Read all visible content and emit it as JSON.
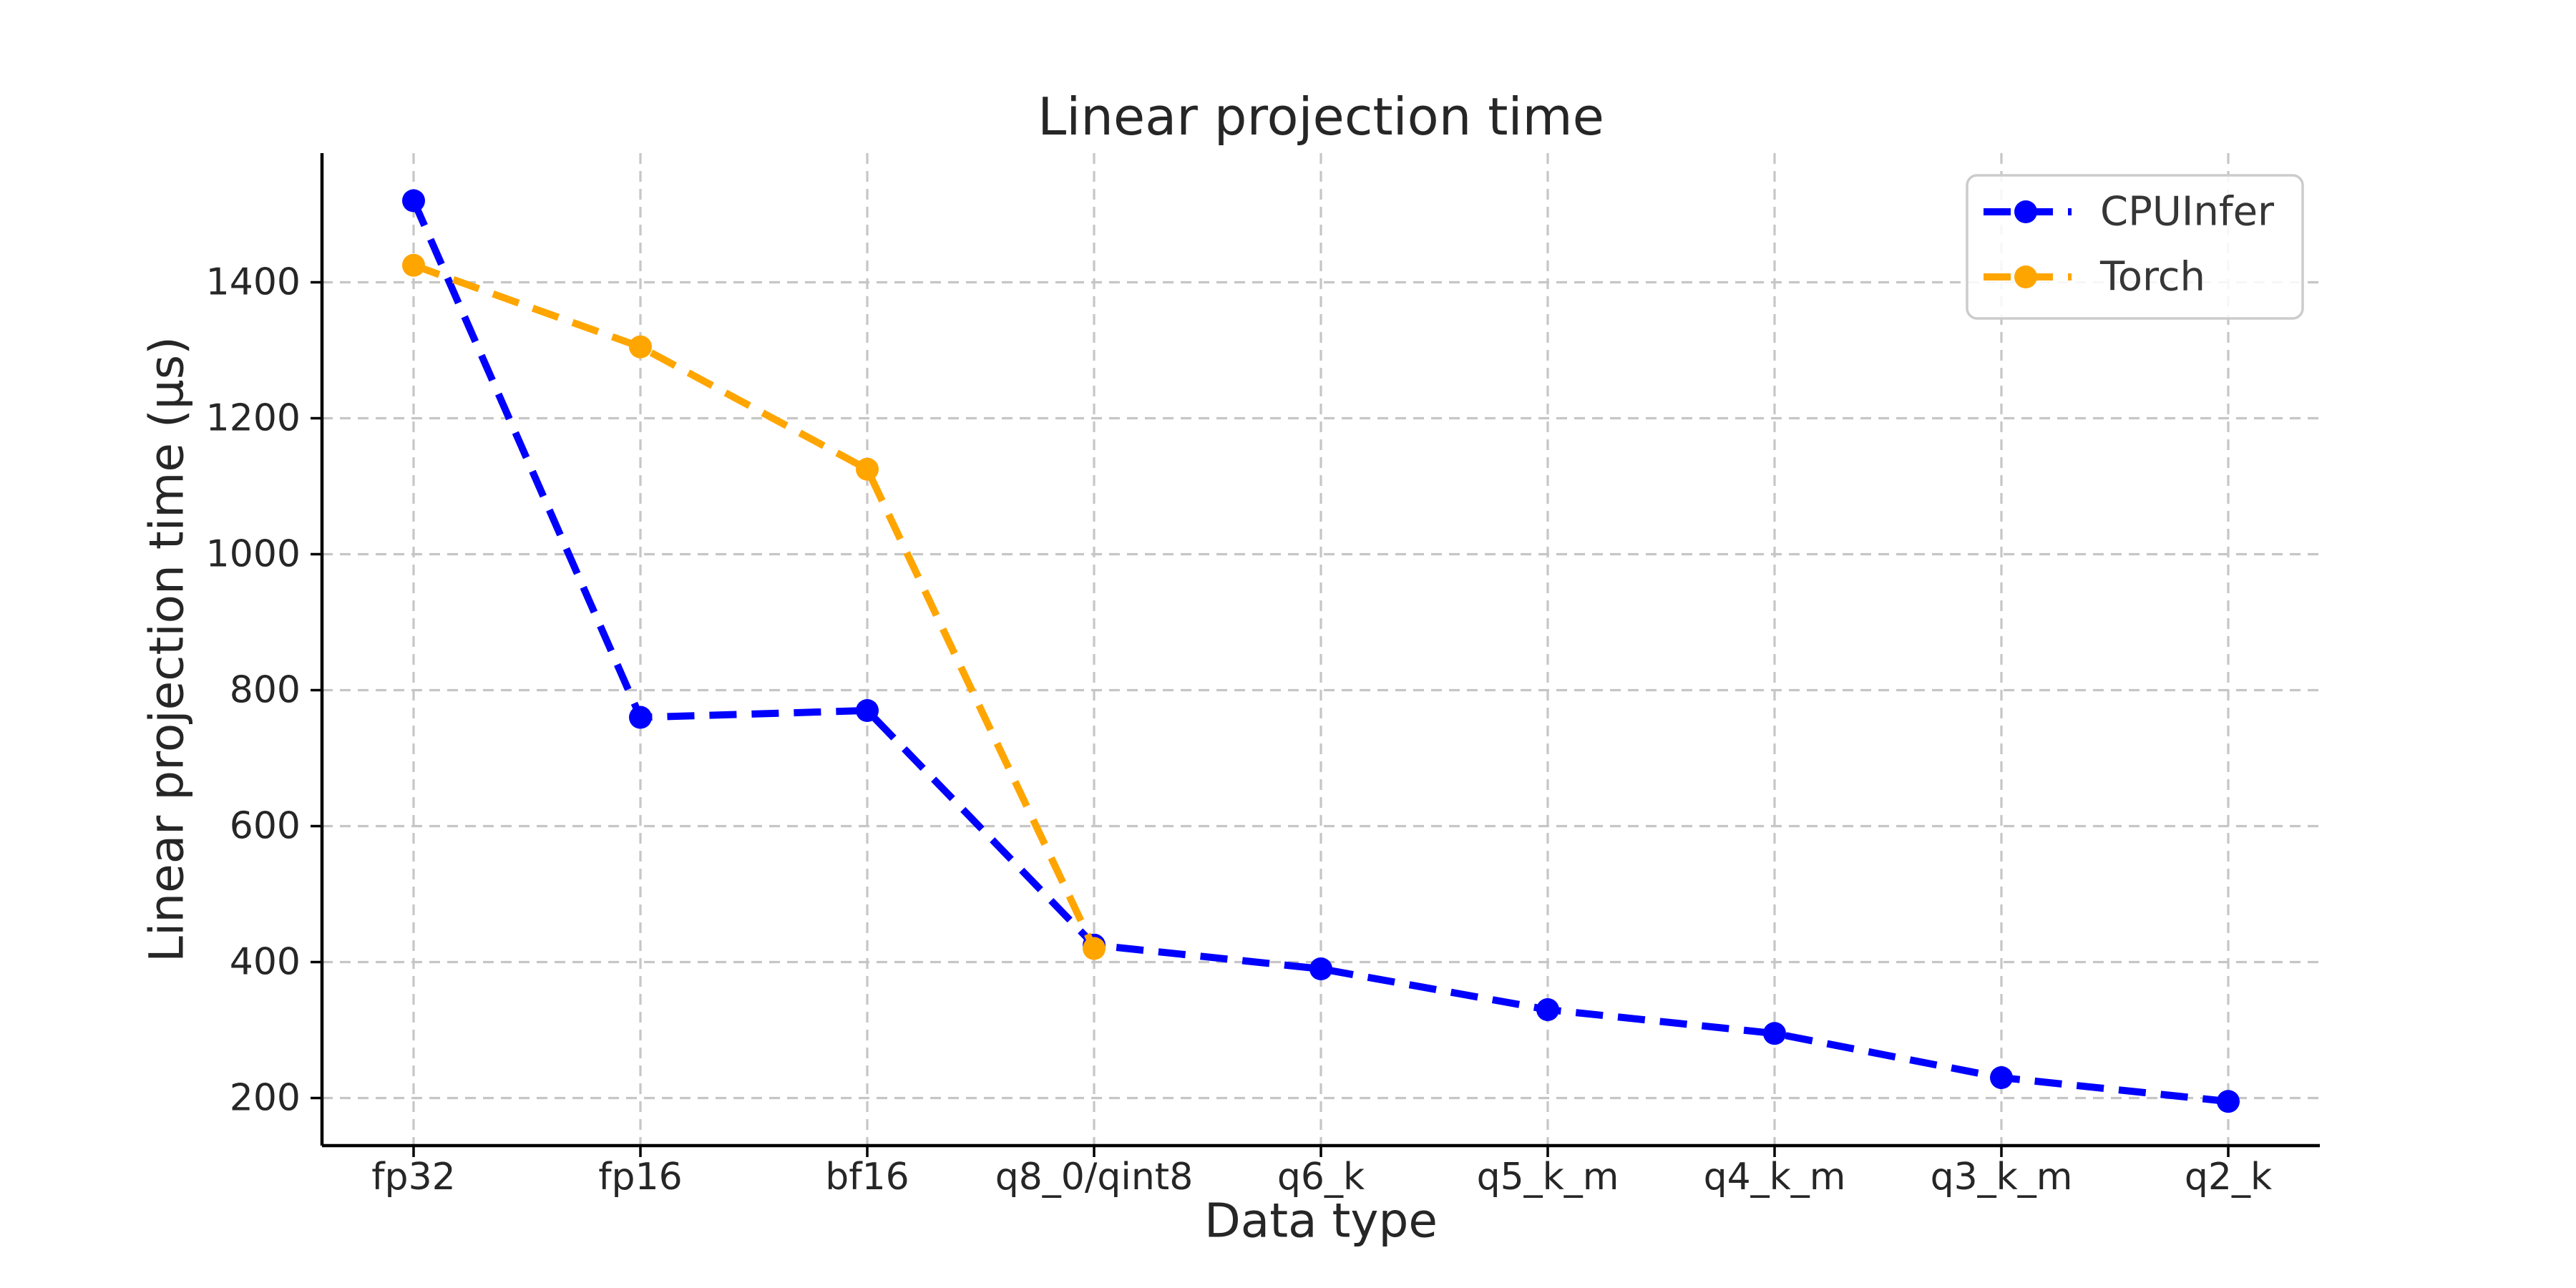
{
  "figure": {
    "background": "#ffffff"
  },
  "chart_data": {
    "type": "line",
    "title": "Linear projection time",
    "xlabel": "Data type",
    "ylabel": "Linear projection time (µs)",
    "categories": [
      "fp32",
      "fp16",
      "bf16",
      "q8_0/qint8",
      "q6_k",
      "q5_k_m",
      "q4_k_m",
      "q3_k_m",
      "q2_k"
    ],
    "series": [
      {
        "name": "CPUInfer",
        "color": "#0000ff",
        "linestyle": "dashed",
        "marker": "circle",
        "values": [
          1520,
          760,
          770,
          425,
          390,
          330,
          295,
          230,
          195
        ]
      },
      {
        "name": "Torch",
        "color": "#ffa500",
        "linestyle": "dashed",
        "marker": "circle",
        "values": [
          1425,
          1305,
          1125,
          420,
          null,
          null,
          null,
          null,
          null
        ]
      }
    ],
    "yticks": [
      200,
      400,
      600,
      800,
      1000,
      1200,
      1400
    ],
    "ylim": [
      130,
      1590
    ],
    "grid": true,
    "grid_color": "#c6c6c6",
    "legend": {
      "position": "upper right",
      "entries": [
        "CPUInfer",
        "Torch"
      ]
    },
    "text_color": "#262626",
    "spine_color": "#000000",
    "legend_border_color": "#cccccc"
  }
}
